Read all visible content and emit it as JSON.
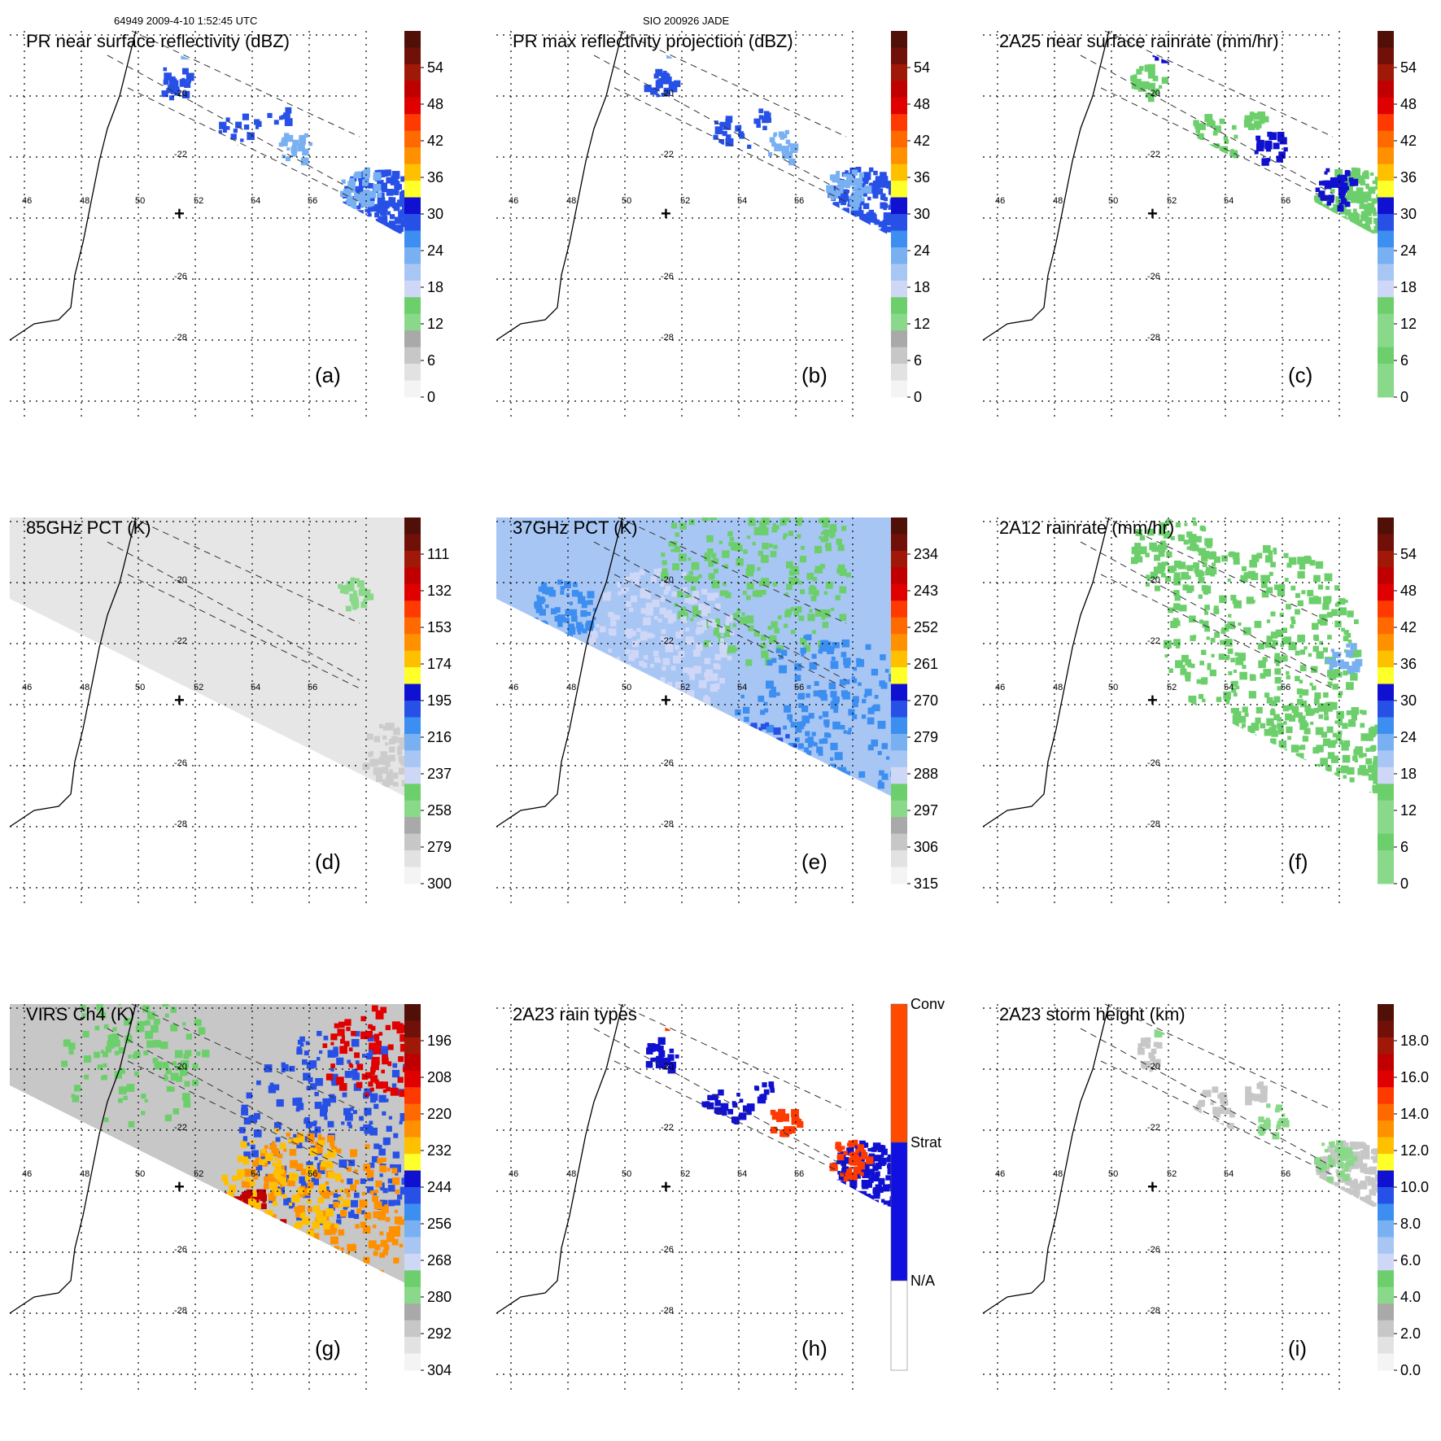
{
  "figure": {
    "header_left": "64949 2009-4-10 1:52:45 UTC",
    "header_center": "SIO 200926 JADE"
  },
  "chart_data": [
    {
      "id": "a",
      "type": "heatmap",
      "title": "PR near surface reflectivity (dBZ)",
      "label": "(a)",
      "colorbar": {
        "ticks": [
          "54",
          "48",
          "42",
          "36",
          "30",
          "24",
          "18",
          "12",
          "6",
          "0"
        ],
        "range": [
          0,
          60
        ]
      },
      "lon_ticks": [
        "46",
        "48",
        "50",
        "52",
        "54",
        "56"
      ],
      "lat_ticks": [
        "-20",
        "-22",
        "-26",
        "-28"
      ]
    },
    {
      "id": "b",
      "type": "heatmap",
      "title": "PR max reflectivity projection (dBZ)",
      "label": "(b)",
      "colorbar": {
        "ticks": [
          "54",
          "48",
          "42",
          "36",
          "30",
          "24",
          "18",
          "12",
          "6",
          "0"
        ],
        "range": [
          0,
          60
        ]
      },
      "lon_ticks": [
        "46",
        "48",
        "50",
        "52",
        "54",
        "56"
      ],
      "lat_ticks": [
        "-20",
        "-22",
        "-26",
        "-28"
      ]
    },
    {
      "id": "c",
      "type": "heatmap",
      "title": "2A25 near surface rainrate (mm/hr)",
      "label": "(c)",
      "colorbar": {
        "ticks": [
          "54",
          "48",
          "42",
          "36",
          "30",
          "24",
          "18",
          "12",
          "6",
          "0"
        ],
        "range": [
          0,
          60
        ]
      },
      "lon_ticks": [
        "46",
        "48",
        "50",
        "52",
        "54",
        "56"
      ],
      "lat_ticks": [
        "-20",
        "-22",
        "-26",
        "-28"
      ]
    },
    {
      "id": "d",
      "type": "heatmap",
      "title": "85GHz PCT (K)",
      "label": "(d)",
      "colorbar": {
        "ticks": [
          "111",
          "132",
          "153",
          "174",
          "195",
          "216",
          "237",
          "258",
          "279",
          "300"
        ],
        "range": [
          90,
          300
        ]
      },
      "lon_ticks": [
        "46",
        "48",
        "50",
        "52",
        "54",
        "56"
      ],
      "lat_ticks": [
        "-20",
        "-22",
        "-26",
        "-28"
      ]
    },
    {
      "id": "e",
      "type": "heatmap",
      "title": "37GHz PCT (K)",
      "label": "(e)",
      "colorbar": {
        "ticks": [
          "234",
          "243",
          "252",
          "261",
          "270",
          "279",
          "288",
          "297",
          "306",
          "315"
        ],
        "range": [
          225,
          315
        ]
      },
      "lon_ticks": [
        "46",
        "48",
        "50",
        "52",
        "54",
        "56"
      ],
      "lat_ticks": [
        "-20",
        "-22",
        "-26",
        "-28"
      ]
    },
    {
      "id": "f",
      "type": "heatmap",
      "title": "2A12 rainrate (mm/hr)",
      "label": "(f)",
      "colorbar": {
        "ticks": [
          "54",
          "48",
          "42",
          "36",
          "30",
          "24",
          "18",
          "12",
          "6",
          "0"
        ],
        "range": [
          0,
          60
        ]
      },
      "lon_ticks": [
        "46",
        "48",
        "50",
        "52",
        "54",
        "56"
      ],
      "lat_ticks": [
        "-20",
        "-22",
        "-26",
        "-28"
      ]
    },
    {
      "id": "g",
      "type": "heatmap",
      "title": "VIRS Ch4 (K)",
      "label": "(g)",
      "colorbar": {
        "ticks": [
          "196",
          "208",
          "220",
          "232",
          "244",
          "256",
          "268",
          "280",
          "292",
          "304"
        ],
        "range": [
          184,
          304
        ]
      },
      "lon_ticks": [
        "46",
        "48",
        "50",
        "52",
        "54",
        "56"
      ],
      "lat_ticks": [
        "-20",
        "-22",
        "-26",
        "-28"
      ]
    },
    {
      "id": "h",
      "type": "heatmap",
      "title": "2A23 rain types",
      "label": "(h)",
      "colorbar": {
        "ticks": [
          "Conv",
          "Strat",
          "N/A"
        ],
        "categories": [
          "N/A",
          "Strat",
          "Conv"
        ]
      },
      "lon_ticks": [
        "46",
        "48",
        "50",
        "52",
        "54",
        "56"
      ],
      "lat_ticks": [
        "-20",
        "-22",
        "-26",
        "-28"
      ]
    },
    {
      "id": "i",
      "type": "heatmap",
      "title": "2A23 storm height (km)",
      "label": "(i)",
      "colorbar": {
        "ticks": [
          "18.0",
          "16.0",
          "14.0",
          "12.0",
          "10.0",
          "8.0",
          "6.0",
          "4.0",
          "2.0",
          "0.0"
        ],
        "range": [
          0,
          20
        ]
      },
      "lon_ticks": [
        "46",
        "48",
        "50",
        "52",
        "54",
        "56"
      ],
      "lat_ticks": [
        "-20",
        "-22",
        "-26",
        "-28"
      ]
    }
  ],
  "colors": {
    "palette": [
      "#f4f4f4",
      "#e2e2e2",
      "#c7c7c7",
      "#a9a9a9",
      "#8ad98a",
      "#6ccf6c",
      "#cfd7f7",
      "#a8c6f4",
      "#78b0f2",
      "#3c8ef0",
      "#2750e6",
      "#1010d0",
      "#ffff2a",
      "#ffc000",
      "#ff9000",
      "#ff6a00",
      "#ff3a00",
      "#e00000",
      "#c00000",
      "#a01808",
      "#701008",
      "#501008"
    ],
    "track": "#000000",
    "grid": "#000000"
  }
}
